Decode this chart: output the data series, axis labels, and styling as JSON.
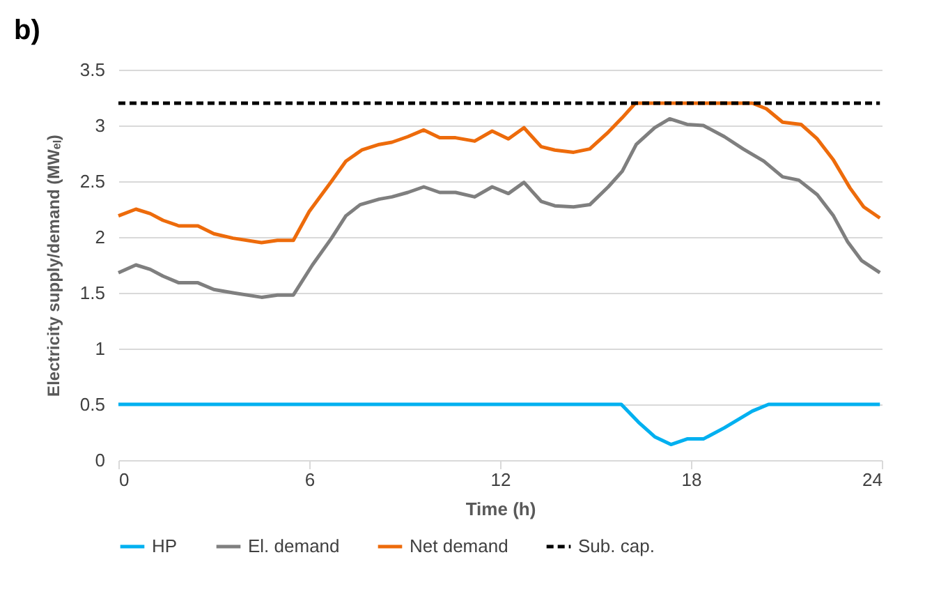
{
  "chart_data": {
    "type": "line",
    "title": "b)",
    "xlabel": "Time (h)",
    "ylabel": "Electricity supply/demand (MWₑₗ)",
    "xlim": [
      0,
      24
    ],
    "xticks": [
      0,
      6,
      12,
      18,
      24
    ],
    "ylim": [
      0,
      3.5
    ],
    "yticks": [
      0,
      0.5,
      1,
      1.5,
      2,
      2.5,
      3,
      3.5
    ],
    "grid": "y",
    "legend": "bottom",
    "series": [
      {
        "name": "HP",
        "color": "#00b0f0",
        "x": [
          0,
          15.81,
          16.35,
          16.86,
          17.37,
          17.88,
          18.39,
          19.05,
          19.93,
          20.44,
          23.94
        ],
        "values": [
          0.5,
          0.5,
          0.34,
          0.21,
          0.14,
          0.19,
          0.19,
          0.29,
          0.44,
          0.5,
          0.5
        ]
      },
      {
        "name": "El. demand",
        "color": "#7f7f7f",
        "x": [
          0,
          0.55,
          1.0,
          1.4,
          1.9,
          2.5,
          3.0,
          3.6,
          4.5,
          5.0,
          5.5,
          6.1,
          6.7,
          7.15,
          7.6,
          8.2,
          8.6,
          9.1,
          9.6,
          10.1,
          10.6,
          11.2,
          11.75,
          12.26,
          12.75,
          13.29,
          13.72,
          14.31,
          14.82,
          15.4,
          15.84,
          16.28,
          16.86,
          17.33,
          17.88,
          18.39,
          19.05,
          19.64,
          20.29,
          20.88,
          21.39,
          21.97,
          22.48,
          22.92,
          23.36,
          23.94
        ],
        "values": [
          1.68,
          1.75,
          1.71,
          1.65,
          1.59,
          1.59,
          1.53,
          1.5,
          1.46,
          1.48,
          1.48,
          1.75,
          1.99,
          2.19,
          2.29,
          2.34,
          2.36,
          2.4,
          2.45,
          2.4,
          2.4,
          2.36,
          2.45,
          2.39,
          2.49,
          2.32,
          2.28,
          2.27,
          2.29,
          2.45,
          2.59,
          2.83,
          2.98,
          3.06,
          3.01,
          3.0,
          2.9,
          2.79,
          2.68,
          2.54,
          2.51,
          2.38,
          2.19,
          1.96,
          1.79,
          1.68
        ]
      },
      {
        "name": "Net demand",
        "color": "#ed6b0b",
        "x": [
          0,
          0.55,
          1.0,
          1.4,
          1.9,
          2.5,
          3.0,
          3.6,
          4.5,
          5.0,
          5.5,
          6.0,
          6.7,
          7.15,
          7.65,
          8.2,
          8.6,
          9.1,
          9.6,
          10.1,
          10.6,
          11.2,
          11.75,
          12.26,
          12.75,
          13.29,
          13.72,
          14.31,
          14.82,
          15.4,
          15.84,
          16.25,
          19.93,
          20.37,
          20.88,
          21.46,
          21.97,
          22.48,
          23.0,
          23.43,
          23.94
        ],
        "values": [
          2.19,
          2.25,
          2.21,
          2.15,
          2.1,
          2.1,
          2.03,
          1.99,
          1.95,
          1.97,
          1.97,
          2.23,
          2.5,
          2.68,
          2.78,
          2.83,
          2.85,
          2.9,
          2.96,
          2.89,
          2.89,
          2.86,
          2.95,
          2.88,
          2.98,
          2.81,
          2.78,
          2.76,
          2.79,
          2.94,
          3.07,
          3.2,
          3.2,
          3.15,
          3.03,
          3.01,
          2.88,
          2.69,
          2.44,
          2.27,
          2.17
        ]
      },
      {
        "name": "Sub. cap.",
        "color": "#000000",
        "line_style": "dashed",
        "x": [
          0,
          23.94
        ],
        "values": [
          3.2,
          3.2
        ]
      }
    ]
  }
}
